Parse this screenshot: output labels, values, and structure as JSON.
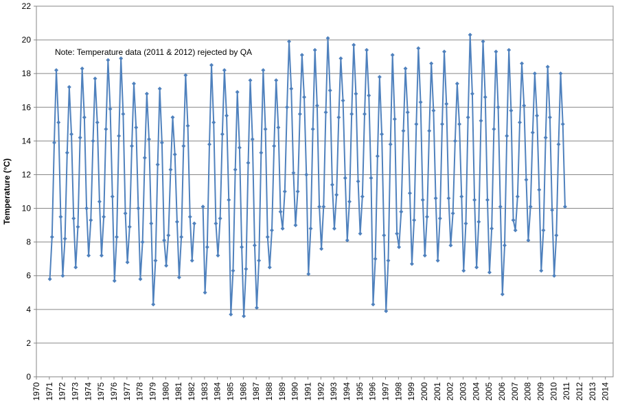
{
  "chart_data": {
    "type": "line",
    "y_label": "Temperature (°C)",
    "annotation": "Note: Temperature data (2011 & 2012) rejected by QA",
    "xlim": [
      1970,
      2014.6
    ],
    "ylim": [
      0,
      22
    ],
    "xticks": [
      1970,
      1971,
      1972,
      1973,
      1974,
      1975,
      1976,
      1977,
      1978,
      1979,
      1980,
      1981,
      1982,
      1983,
      1984,
      1985,
      1986,
      1987,
      1988,
      1989,
      1990,
      1991,
      1992,
      1993,
      1994,
      1995,
      1996,
      1997,
      1998,
      1999,
      2000,
      2001,
      2002,
      2003,
      2004,
      2005,
      2006,
      2007,
      2008,
      2009,
      2010,
      2011,
      2012,
      2013,
      2014
    ],
    "yticks": [
      0,
      2,
      4,
      6,
      8,
      10,
      12,
      14,
      16,
      18,
      20,
      22
    ],
    "grid": true,
    "x": [
      1971.04,
      1971.21,
      1971.38,
      1971.54,
      1971.71,
      1971.88,
      1972.04,
      1972.21,
      1972.38,
      1972.54,
      1972.71,
      1972.88,
      1973.04,
      1973.21,
      1973.38,
      1973.54,
      1973.71,
      1973.88,
      1974.04,
      1974.21,
      1974.38,
      1974.54,
      1974.71,
      1974.88,
      1975.04,
      1975.21,
      1975.38,
      1975.54,
      1975.71,
      1975.88,
      1976.04,
      1976.21,
      1976.38,
      1976.54,
      1976.71,
      1976.88,
      1977.04,
      1977.21,
      1977.38,
      1977.54,
      1977.71,
      1977.88,
      1978.04,
      1978.21,
      1978.38,
      1978.54,
      1978.71,
      1978.88,
      1979.04,
      1979.21,
      1979.38,
      1979.54,
      1979.71,
      1979.88,
      1980.04,
      1980.21,
      1980.38,
      1980.54,
      1980.71,
      1980.88,
      1981.04,
      1981.21,
      1981.38,
      1981.54,
      1981.71,
      1981.88,
      1982.04,
      1982.21,
      1982.38,
      1982.54,
      1982.71,
      1982.88,
      1983.04,
      1983.21,
      1983.38,
      1983.54,
      1983.71,
      1983.88,
      1984.04,
      1984.21,
      1984.38,
      1984.54,
      1984.71,
      1984.88,
      1985.04,
      1985.21,
      1985.38,
      1985.54,
      1985.71,
      1985.88,
      1986.04,
      1986.21,
      1986.38,
      1986.54,
      1986.71,
      1986.88,
      1987.04,
      1987.21,
      1987.38,
      1987.54,
      1987.71,
      1987.88,
      1988.04,
      1988.21,
      1988.38,
      1988.54,
      1988.71,
      1988.88,
      1989.04,
      1989.21,
      1989.38,
      1989.54,
      1989.71,
      1989.88,
      1990.04,
      1990.21,
      1990.38,
      1990.54,
      1990.71,
      1990.88,
      1991.04,
      1991.21,
      1991.38,
      1991.54,
      1991.71,
      1991.88,
      1992.04,
      1992.21,
      1992.38,
      1992.54,
      1992.71,
      1992.88,
      1993.04,
      1993.21,
      1993.38,
      1993.54,
      1993.71,
      1993.88,
      1994.04,
      1994.21,
      1994.38,
      1994.54,
      1994.71,
      1994.88,
      1995.04,
      1995.21,
      1995.38,
      1995.54,
      1995.71,
      1995.88,
      1996.04,
      1996.21,
      1996.38,
      1996.54,
      1996.71,
      1996.88,
      1997.04,
      1997.21,
      1997.38,
      1997.54,
      1997.71,
      1997.88,
      1998.04,
      1998.21,
      1998.38,
      1998.54,
      1998.71,
      1998.88,
      1999.04,
      1999.21,
      1999.38,
      1999.54,
      1999.71,
      1999.88,
      2000.04,
      2000.21,
      2000.38,
      2000.54,
      2000.71,
      2000.88,
      2001.04,
      2001.21,
      2001.38,
      2001.54,
      2001.71,
      2001.88,
      2002.04,
      2002.21,
      2002.38,
      2002.54,
      2002.71,
      2002.88,
      2003.04,
      2003.21,
      2003.38,
      2003.54,
      2003.71,
      2003.88,
      2004.04,
      2004.21,
      2004.38,
      2004.54,
      2004.71,
      2004.88,
      2005.04,
      2005.21,
      2005.38,
      2005.54,
      2005.71,
      2005.88,
      2006.04,
      2006.21,
      2006.38,
      2006.54,
      2006.71,
      2006.88,
      2007.04,
      2007.21,
      2007.38,
      2007.54,
      2007.71,
      2007.88,
      2008.04,
      2008.21,
      2008.38,
      2008.54,
      2008.71,
      2008.88,
      2009.04,
      2009.21,
      2009.38,
      2009.54,
      2009.71,
      2009.88,
      2010.04,
      2010.21,
      2010.38,
      2010.54,
      2010.71,
      2010.88
    ],
    "series": [
      {
        "color": "#4f81bd",
        "values": [
          5.8,
          8.3,
          13.9,
          18.2,
          15.1,
          9.5,
          6.0,
          8.2,
          13.3,
          17.2,
          14.4,
          9.4,
          6.5,
          8.9,
          14.2,
          18.3,
          15.4,
          10.0,
          7.2,
          9.3,
          14.0,
          17.7,
          15.1,
          10.4,
          7.2,
          9.5,
          14.7,
          18.8,
          15.9,
          10.7,
          5.7,
          8.3,
          14.3,
          18.9,
          15.6,
          9.7,
          6.8,
          8.9,
          13.7,
          17.4,
          14.8,
          10.0,
          5.8,
          8.0,
          13.0,
          16.8,
          14.1,
          9.1,
          4.3,
          6.9,
          12.6,
          17.1,
          13.9,
          8.1,
          6.6,
          8.4,
          12.3,
          15.4,
          13.2,
          9.2,
          5.9,
          8.3,
          13.7,
          17.9,
          14.9,
          9.5,
          6.9,
          9.1,
          null,
          null,
          null,
          10.1,
          5.0,
          7.7,
          13.8,
          18.5,
          15.1,
          9.1,
          7.2,
          9.4,
          14.4,
          18.2,
          15.5,
          10.5,
          3.7,
          6.3,
          12.3,
          16.9,
          13.6,
          7.7,
          3.6,
          6.4,
          12.7,
          17.6,
          14.1,
          7.8,
          4.1,
          6.9,
          13.3,
          18.2,
          14.7,
          8.3,
          6.5,
          8.7,
          13.7,
          17.6,
          14.8,
          9.8,
          8.8,
          11.0,
          16.0,
          19.9,
          17.1,
          12.1,
          9.0,
          11.0,
          15.6,
          19.1,
          16.6,
          12.0,
          6.1,
          8.8,
          14.7,
          19.4,
          16.1,
          10.1,
          7.6,
          10.1,
          15.7,
          20.1,
          17.0,
          11.4,
          8.8,
          10.8,
          15.4,
          18.9,
          16.4,
          11.8,
          8.1,
          10.4,
          15.6,
          19.7,
          16.8,
          11.6,
          8.5,
          10.7,
          15.6,
          19.4,
          16.7,
          11.8,
          4.3,
          7.0,
          13.1,
          17.8,
          14.4,
          8.4,
          3.9,
          6.9,
          13.8,
          19.1,
          15.3,
          8.5,
          7.7,
          9.8,
          14.6,
          18.3,
          15.7,
          10.9,
          6.7,
          9.3,
          15.0,
          19.5,
          16.3,
          10.5,
          7.2,
          9.5,
          14.6,
          18.6,
          15.8,
          10.6,
          6.9,
          9.4,
          15.0,
          19.3,
          16.2,
          10.6,
          7.8,
          9.7,
          14.0,
          17.4,
          15.0,
          10.7,
          6.3,
          9.1,
          15.4,
          20.3,
          16.8,
          10.5,
          6.5,
          9.2,
          15.2,
          19.9,
          16.6,
          10.5,
          6.2,
          8.8,
          14.7,
          19.3,
          16.0,
          10.1,
          4.9,
          7.8,
          14.3,
          19.4,
          15.8,
          9.3,
          8.7,
          10.7,
          15.1,
          18.6,
          16.1,
          11.7,
          8.1,
          10.1,
          14.5,
          18.0,
          15.5,
          11.1,
          6.3,
          8.7,
          14.2,
          18.4,
          15.4,
          9.9,
          6.0,
          8.4,
          13.8,
          18.0,
          15.0,
          10.1
        ]
      }
    ]
  }
}
